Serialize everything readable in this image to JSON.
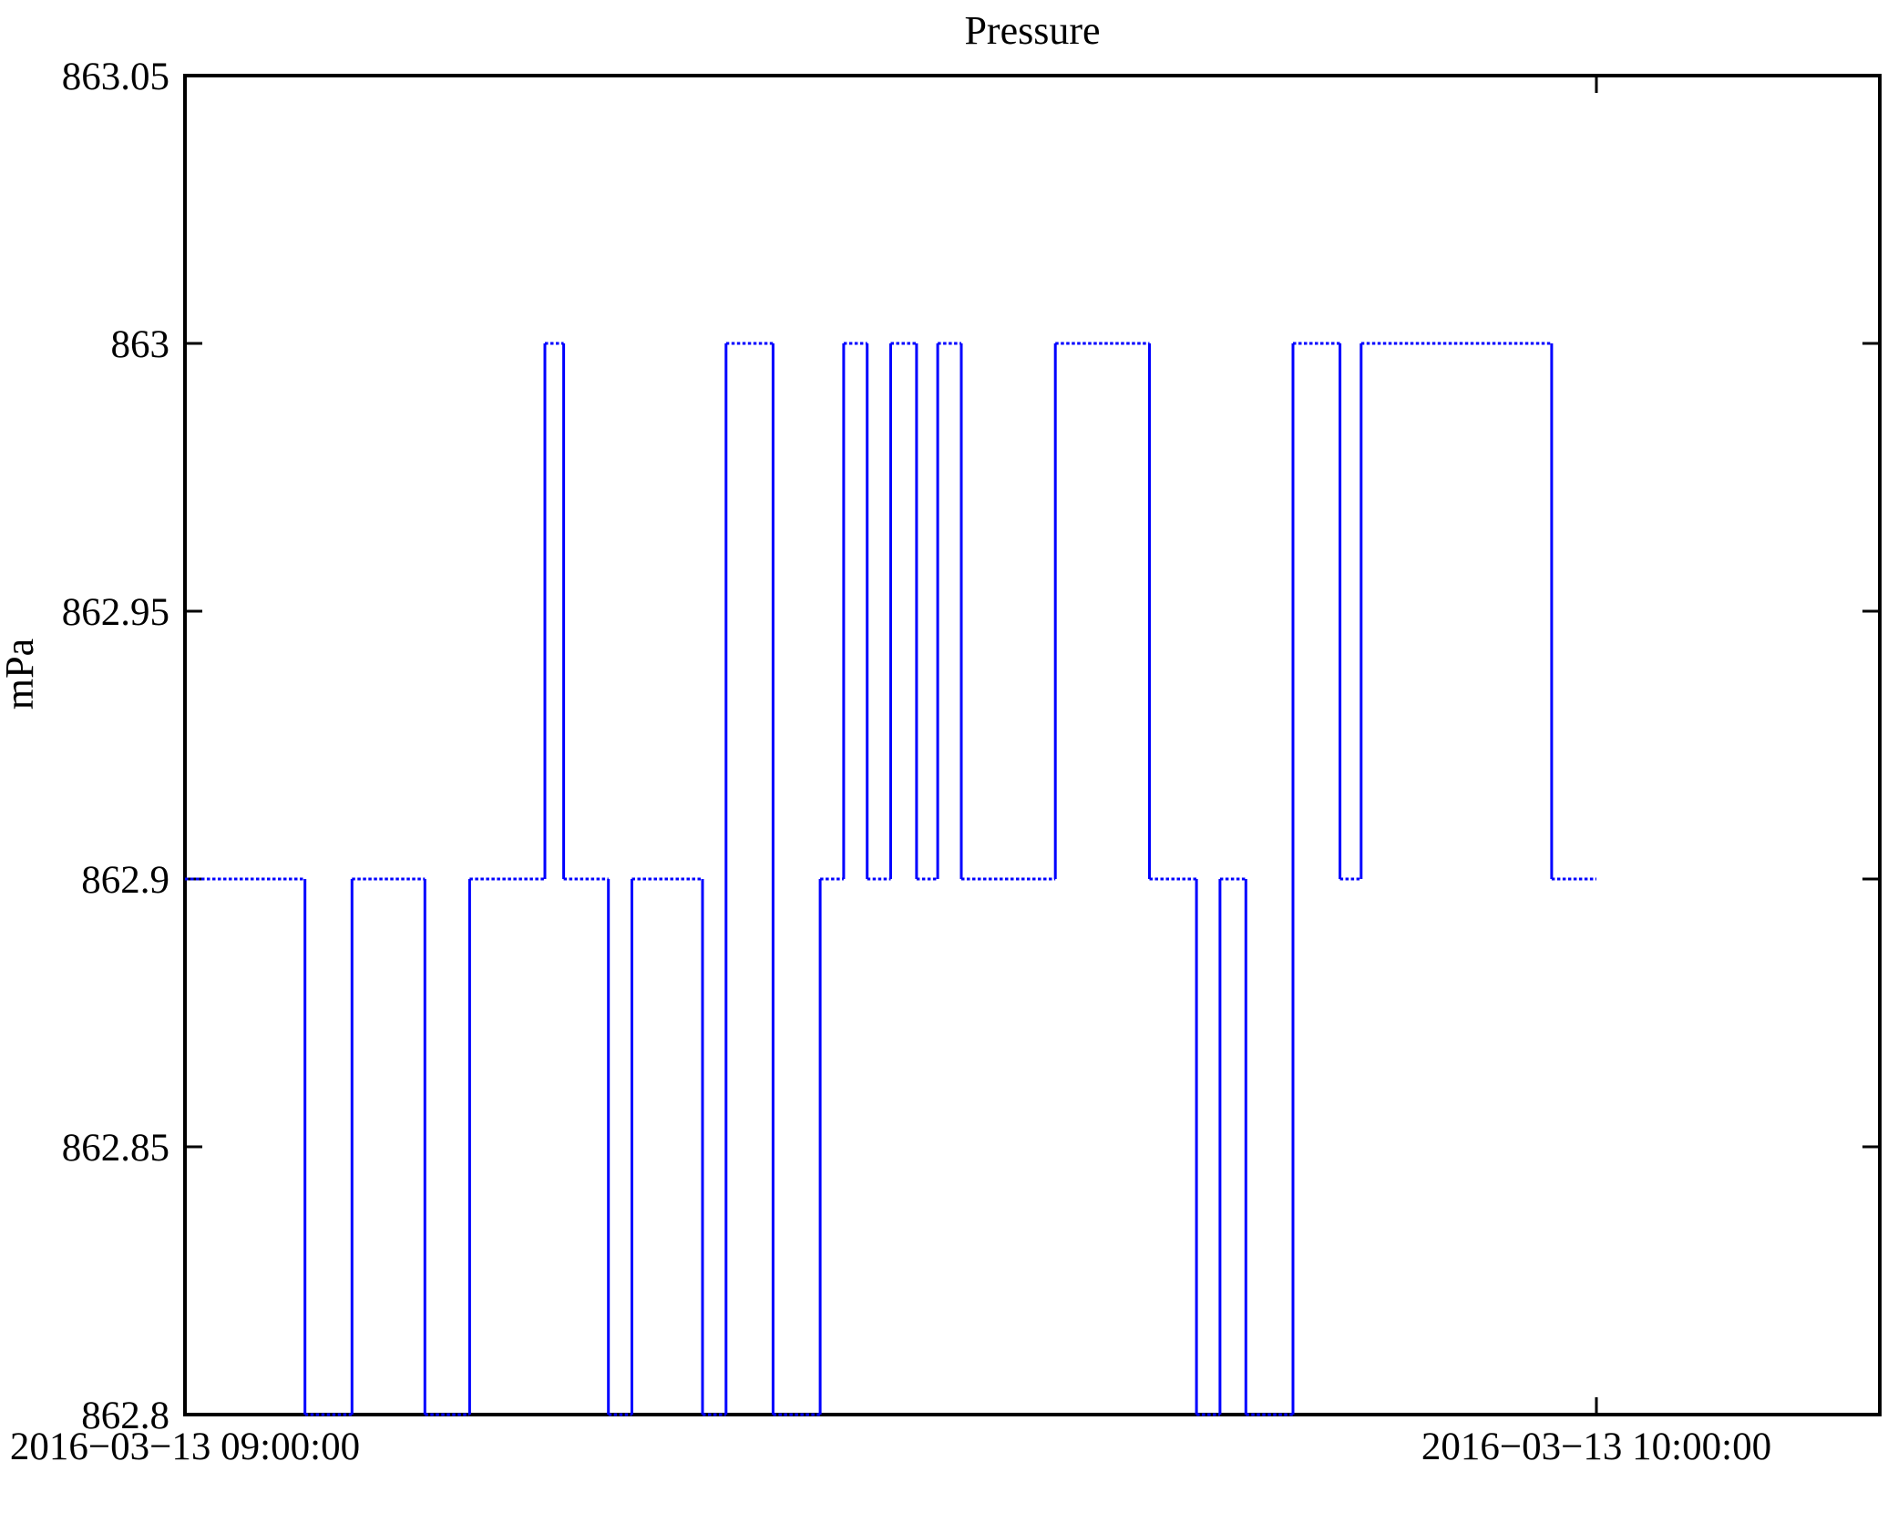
{
  "chart_data": {
    "type": "line",
    "subtype": "step-post",
    "title": "Pressure",
    "xlabel": "",
    "ylabel": "mPa",
    "line_color": "#0000ff",
    "background_color": "#ffffff",
    "axis_color": "#000000",
    "grid": false,
    "legend": false,
    "ylim": [
      862.8,
      863.05
    ],
    "y_ticks": [
      {
        "value": 862.8,
        "label": "862.8"
      },
      {
        "value": 862.85,
        "label": "862.85"
      },
      {
        "value": 862.9,
        "label": "862.9"
      },
      {
        "value": 862.95,
        "label": "862.95"
      },
      {
        "value": 863,
        "label": "863"
      },
      {
        "value": 863.05,
        "label": "863.05"
      }
    ],
    "xlim_minutes_after_start": [
      0,
      72.05
    ],
    "x_ticks": [
      {
        "minutes": 0,
        "label": "2016−03−13 09:00:00"
      },
      {
        "minutes": 60,
        "label": "2016−03−13 10:00:00"
      }
    ],
    "series": [
      {
        "name": "Pressure",
        "color": "#0000ff",
        "start_time": "2016-03-13 09:00:00",
        "end_time": "2016-03-13 10:00:00",
        "points_t_minutes": [
          0,
          5.1,
          7.1,
          10.2,
          12.1,
          15.3,
          16.1,
          18,
          19,
          22,
          23,
          25,
          27,
          28,
          29,
          30,
          31.1,
          32,
          33,
          37,
          41,
          43,
          44,
          45.1,
          47.1,
          49.1,
          50,
          58.1,
          60
        ],
        "values_mPa": [
          862.9,
          862.8,
          862.9,
          862.8,
          862.9,
          863,
          862.9,
          862.8,
          862.9,
          862.8,
          863,
          862.8,
          862.9,
          863,
          862.9,
          863,
          862.9,
          863,
          862.9,
          863,
          862.9,
          862.8,
          862.9,
          862.8,
          863,
          862.9,
          863,
          862.9,
          862.9
        ]
      }
    ]
  }
}
